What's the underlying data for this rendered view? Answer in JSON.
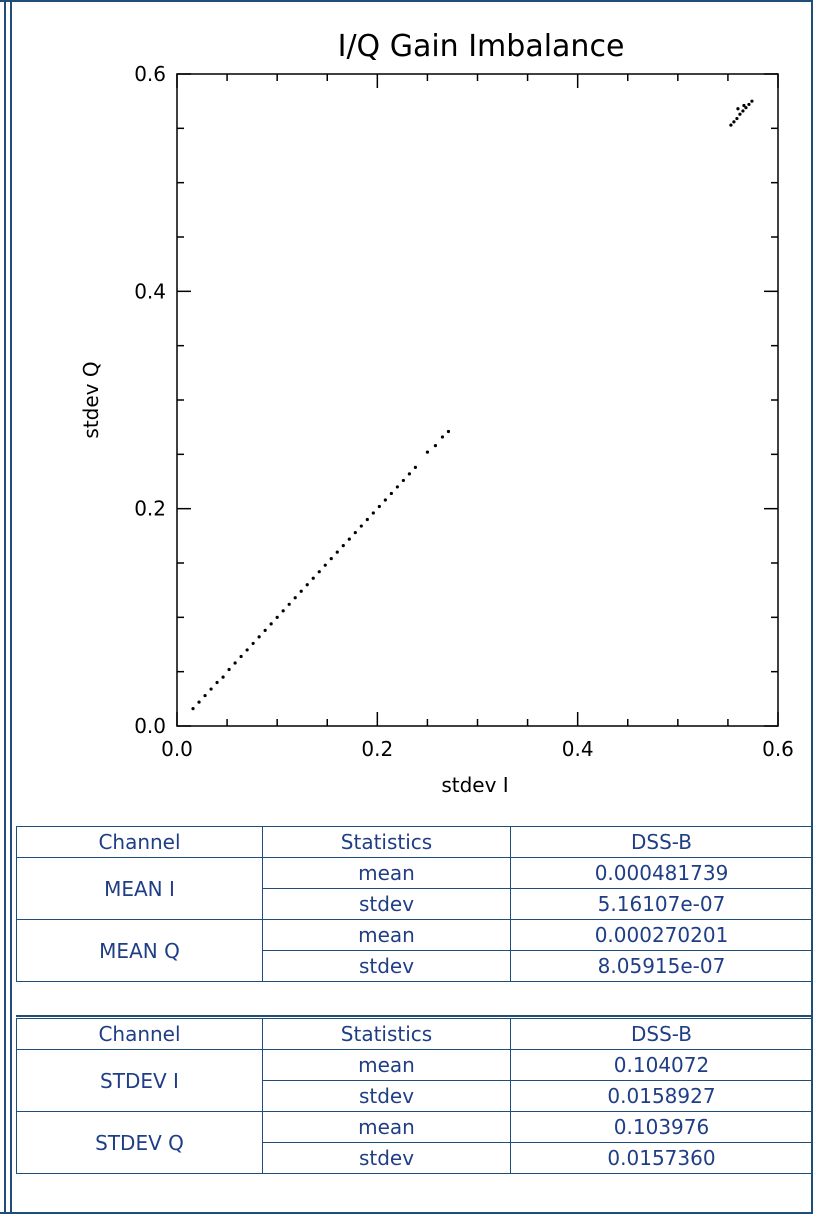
{
  "chart_data": {
    "type": "scatter",
    "title": "I/Q Gain Imbalance",
    "xlabel": "stdev I",
    "ylabel": "stdev Q",
    "xlim": [
      0.0,
      0.6
    ],
    "ylim": [
      0.0,
      0.6
    ],
    "xticks": [
      "0.0",
      "0.2",
      "0.4",
      "0.6"
    ],
    "yticks": [
      "0.0",
      "0.2",
      "0.4",
      "0.6"
    ],
    "grid": false,
    "series": [
      {
        "color": "#000000",
        "points": [
          [
            0.016,
            0.016
          ],
          [
            0.022,
            0.022
          ],
          [
            0.028,
            0.028
          ],
          [
            0.034,
            0.034
          ],
          [
            0.04,
            0.04
          ],
          [
            0.046,
            0.045
          ],
          [
            0.052,
            0.052
          ],
          [
            0.058,
            0.058
          ],
          [
            0.064,
            0.064
          ],
          [
            0.07,
            0.07
          ],
          [
            0.076,
            0.076
          ],
          [
            0.082,
            0.082
          ],
          [
            0.088,
            0.088
          ],
          [
            0.094,
            0.094
          ],
          [
            0.1,
            0.1
          ],
          [
            0.106,
            0.106
          ],
          [
            0.112,
            0.112
          ],
          [
            0.118,
            0.118
          ],
          [
            0.124,
            0.124
          ],
          [
            0.13,
            0.13
          ],
          [
            0.136,
            0.136
          ],
          [
            0.142,
            0.142
          ],
          [
            0.148,
            0.148
          ],
          [
            0.154,
            0.154
          ],
          [
            0.16,
            0.16
          ],
          [
            0.166,
            0.166
          ],
          [
            0.172,
            0.172
          ],
          [
            0.178,
            0.178
          ],
          [
            0.184,
            0.184
          ],
          [
            0.19,
            0.19
          ],
          [
            0.196,
            0.196
          ],
          [
            0.202,
            0.202
          ],
          [
            0.208,
            0.208
          ],
          [
            0.214,
            0.214
          ],
          [
            0.22,
            0.22
          ],
          [
            0.226,
            0.226
          ],
          [
            0.232,
            0.232
          ],
          [
            0.238,
            0.238
          ],
          [
            0.25,
            0.252
          ],
          [
            0.258,
            0.258
          ],
          [
            0.265,
            0.266
          ],
          [
            0.271,
            0.271
          ],
          [
            0.553,
            0.553
          ],
          [
            0.556,
            0.556
          ],
          [
            0.559,
            0.559
          ],
          [
            0.562,
            0.563
          ],
          [
            0.565,
            0.566
          ],
          [
            0.568,
            0.569
          ],
          [
            0.571,
            0.572
          ],
          [
            0.574,
            0.575
          ],
          [
            0.56,
            0.568
          ],
          [
            0.566,
            0.571
          ]
        ]
      }
    ]
  },
  "tables": [
    {
      "headers": [
        "Channel",
        "Statistics",
        "DSS-B"
      ],
      "groups": [
        {
          "channel": "MEAN I",
          "rows": [
            {
              "stat": "mean",
              "value": "0.000481739"
            },
            {
              "stat": "stdev",
              "value": "5.16107e-07"
            }
          ]
        },
        {
          "channel": "MEAN Q",
          "rows": [
            {
              "stat": "mean",
              "value": "0.000270201"
            },
            {
              "stat": "stdev",
              "value": "8.05915e-07"
            }
          ]
        }
      ]
    },
    {
      "headers": [
        "Channel",
        "Statistics",
        "DSS-B"
      ],
      "groups": [
        {
          "channel": "STDEV I",
          "rows": [
            {
              "stat": "mean",
              "value": "0.104072"
            },
            {
              "stat": "stdev",
              "value": "0.0158927"
            }
          ]
        },
        {
          "channel": "STDEV Q",
          "rows": [
            {
              "stat": "mean",
              "value": "0.103976"
            },
            {
              "stat": "stdev",
              "value": "0.0157360"
            }
          ]
        }
      ]
    }
  ],
  "colors": {
    "border": "#1f4f79",
    "table_text": "#1f3e86",
    "plot_ink": "#000000"
  }
}
